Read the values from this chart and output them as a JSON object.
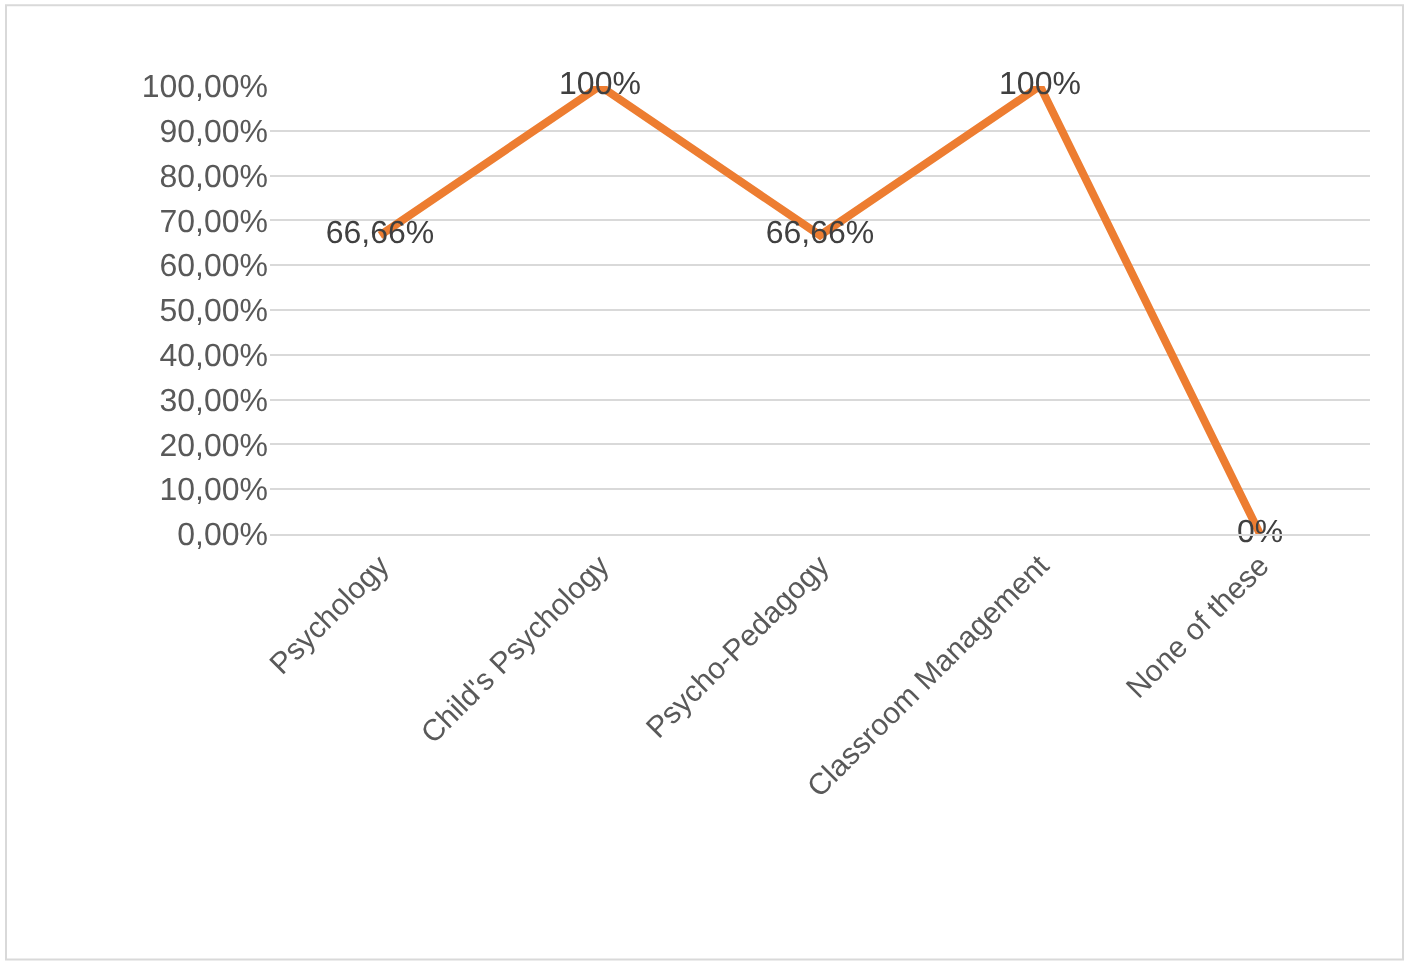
{
  "chart_data": {
    "type": "line",
    "categories": [
      "Psychology",
      "Child's Psychology",
      "Psycho-Pedagogy",
      "Classroom Management",
      "None of these"
    ],
    "series": [
      {
        "color": "#ed7d31",
        "values": [
          66.66,
          100,
          66.66,
          100,
          0
        ],
        "value_labels": [
          "66,66%",
          "100%",
          "66,66%",
          "100%",
          "0%"
        ]
      }
    ],
    "ylim": [
      0,
      100
    ],
    "yticks": [
      {
        "value": 0,
        "label": "0,00%"
      },
      {
        "value": 10,
        "label": "10,00%"
      },
      {
        "value": 20,
        "label": "20,00%"
      },
      {
        "value": 30,
        "label": "30,00%"
      },
      {
        "value": 40,
        "label": "40,00%"
      },
      {
        "value": 50,
        "label": "50,00%"
      },
      {
        "value": 60,
        "label": "60,00%"
      },
      {
        "value": 70,
        "label": "70,00%"
      },
      {
        "value": 80,
        "label": "80,00%"
      },
      {
        "value": 90,
        "label": "90,00%"
      },
      {
        "value": 100,
        "label": "100,00%"
      }
    ],
    "grid": "y",
    "marker": "none",
    "line_style": "solid"
  }
}
